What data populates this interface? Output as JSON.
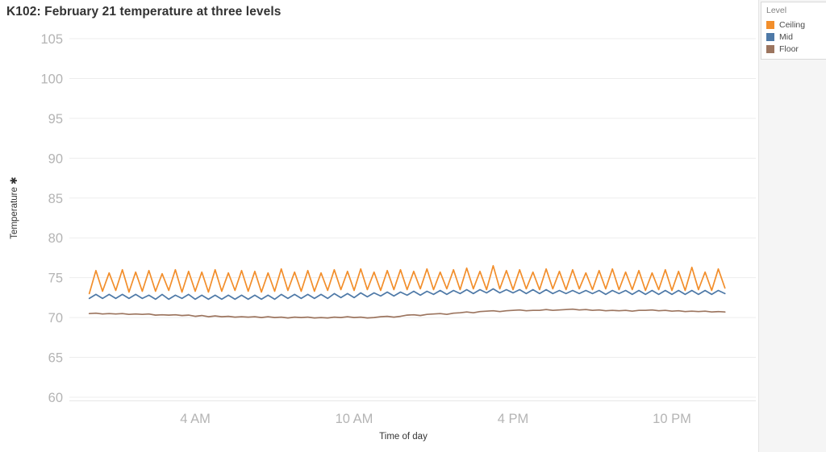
{
  "title": "K102: February 21 temperature at three levels",
  "legend": {
    "title": "Level",
    "items": [
      {
        "label": "Ceiling",
        "color": "#F28E2B"
      },
      {
        "label": "Mid",
        "color": "#4E79A7"
      },
      {
        "label": "Floor",
        "color": "#9C755F"
      }
    ]
  },
  "colors": {
    "ceiling": "#F28E2B",
    "mid": "#4E79A7",
    "floor": "#9C755F",
    "grid": "#ededed",
    "axis_line": "#e7e7e7",
    "tick_label": "#b4b4b4",
    "title_text": "#333333",
    "panel_bg": "#f5f5f5"
  },
  "chart_data": {
    "type": "line",
    "title": "K102: February 21 temperature at three levels",
    "xlabel": "Time of day",
    "ylabel": "Temperature ✱",
    "x_unit": "hour of day (0-24)",
    "xlim": [
      0,
      24
    ],
    "ylim": [
      60,
      105
    ],
    "grid": true,
    "legend_position": "top-right",
    "y_ticks": [
      105,
      100,
      95,
      90,
      85,
      80,
      75,
      70,
      65,
      60
    ],
    "x_ticks": [
      {
        "hour": 4,
        "label": "4 AM"
      },
      {
        "hour": 10,
        "label": "10 AM"
      },
      {
        "hour": 16,
        "label": "4 PM"
      },
      {
        "hour": 22,
        "label": "10 PM"
      }
    ],
    "x_hours": [
      0,
      0.25,
      0.5,
      0.75,
      1,
      1.25,
      1.5,
      1.75,
      2,
      2.25,
      2.5,
      2.75,
      3,
      3.25,
      3.5,
      3.75,
      4,
      4.25,
      4.5,
      4.75,
      5,
      5.25,
      5.5,
      5.75,
      6,
      6.25,
      6.5,
      6.75,
      7,
      7.25,
      7.5,
      7.75,
      8,
      8.25,
      8.5,
      8.75,
      9,
      9.25,
      9.5,
      9.75,
      10,
      10.25,
      10.5,
      10.75,
      11,
      11.25,
      11.5,
      11.75,
      12,
      12.25,
      12.5,
      12.75,
      13,
      13.25,
      13.5,
      13.75,
      14,
      14.25,
      14.5,
      14.75,
      15,
      15.25,
      15.5,
      15.75,
      16,
      16.25,
      16.5,
      16.75,
      17,
      17.25,
      17.5,
      17.75,
      18,
      18.25,
      18.5,
      18.75,
      19,
      19.25,
      19.5,
      19.75,
      20,
      20.25,
      20.5,
      20.75,
      21,
      21.25,
      21.5,
      21.75,
      22,
      22.25,
      22.5,
      22.75,
      23,
      23.25,
      23.5,
      23.75,
      24
    ],
    "series": [
      {
        "name": "Ceiling",
        "color": "#F28E2B",
        "values": [
          73.0,
          75.9,
          73.3,
          75.6,
          73.4,
          76.0,
          73.2,
          75.7,
          73.3,
          75.9,
          73.3,
          75.5,
          73.4,
          76.0,
          73.2,
          75.8,
          73.3,
          75.7,
          73.2,
          76.0,
          73.3,
          75.6,
          73.4,
          75.9,
          73.3,
          75.8,
          73.2,
          75.6,
          73.3,
          76.1,
          73.4,
          75.7,
          73.3,
          75.9,
          73.3,
          75.6,
          73.4,
          76.0,
          73.5,
          75.8,
          73.4,
          76.1,
          73.5,
          75.7,
          73.4,
          75.9,
          73.5,
          76.0,
          73.5,
          75.8,
          73.6,
          76.1,
          73.5,
          75.7,
          73.6,
          76.0,
          73.5,
          76.2,
          73.6,
          75.8,
          73.5,
          76.5,
          73.6,
          75.9,
          73.5,
          76.0,
          73.6,
          75.7,
          73.5,
          76.1,
          73.6,
          75.8,
          73.5,
          76.0,
          73.6,
          75.6,
          73.5,
          75.9,
          73.6,
          76.1,
          73.5,
          75.7,
          73.5,
          75.9,
          73.4,
          75.6,
          73.5,
          76.0,
          73.4,
          75.8,
          73.4,
          76.3,
          73.5,
          75.7,
          73.4,
          76.1,
          73.7
        ]
      },
      {
        "name": "Mid",
        "color": "#4E79A7",
        "values": [
          72.4,
          72.9,
          72.4,
          72.9,
          72.4,
          72.9,
          72.4,
          72.9,
          72.4,
          72.8,
          72.3,
          72.9,
          72.3,
          72.8,
          72.4,
          72.9,
          72.3,
          72.8,
          72.3,
          72.8,
          72.3,
          72.8,
          72.3,
          72.8,
          72.3,
          72.8,
          72.3,
          72.8,
          72.3,
          72.9,
          72.4,
          72.9,
          72.4,
          72.9,
          72.4,
          72.9,
          72.4,
          73.0,
          72.5,
          73.0,
          72.5,
          73.1,
          72.6,
          73.1,
          72.7,
          73.2,
          72.7,
          73.2,
          72.8,
          73.3,
          72.8,
          73.3,
          72.9,
          73.4,
          72.9,
          73.4,
          73.0,
          73.5,
          73.0,
          73.5,
          73.1,
          73.6,
          73.1,
          73.5,
          73.1,
          73.5,
          73.0,
          73.5,
          73.0,
          73.5,
          73.0,
          73.4,
          73.0,
          73.4,
          73.0,
          73.4,
          73.0,
          73.4,
          72.9,
          73.4,
          73.0,
          73.4,
          72.9,
          73.4,
          72.9,
          73.4,
          72.9,
          73.4,
          72.9,
          73.4,
          72.9,
          73.4,
          72.9,
          73.4,
          72.9,
          73.4,
          73.0
        ]
      },
      {
        "name": "Floor",
        "color": "#9C755F",
        "values": [
          70.5,
          70.55,
          70.45,
          70.5,
          70.45,
          70.5,
          70.4,
          70.45,
          70.4,
          70.45,
          70.3,
          70.35,
          70.3,
          70.35,
          70.25,
          70.3,
          70.15,
          70.25,
          70.1,
          70.2,
          70.1,
          70.15,
          70.05,
          70.1,
          70.05,
          70.1,
          70.0,
          70.1,
          70.0,
          70.05,
          69.95,
          70.05,
          70.0,
          70.05,
          69.95,
          70.0,
          69.95,
          70.05,
          70.0,
          70.1,
          70.0,
          70.05,
          69.95,
          70.0,
          70.1,
          70.15,
          70.05,
          70.15,
          70.3,
          70.35,
          70.25,
          70.4,
          70.45,
          70.5,
          70.4,
          70.55,
          70.6,
          70.7,
          70.6,
          70.75,
          70.8,
          70.85,
          70.75,
          70.85,
          70.9,
          70.95,
          70.85,
          70.9,
          70.9,
          71.0,
          70.9,
          70.95,
          71.0,
          71.05,
          70.95,
          71.0,
          70.9,
          70.95,
          70.85,
          70.9,
          70.85,
          70.9,
          70.8,
          70.9,
          70.9,
          70.95,
          70.85,
          70.9,
          70.8,
          70.85,
          70.75,
          70.8,
          70.75,
          70.8,
          70.7,
          70.75,
          70.7
        ]
      }
    ]
  }
}
